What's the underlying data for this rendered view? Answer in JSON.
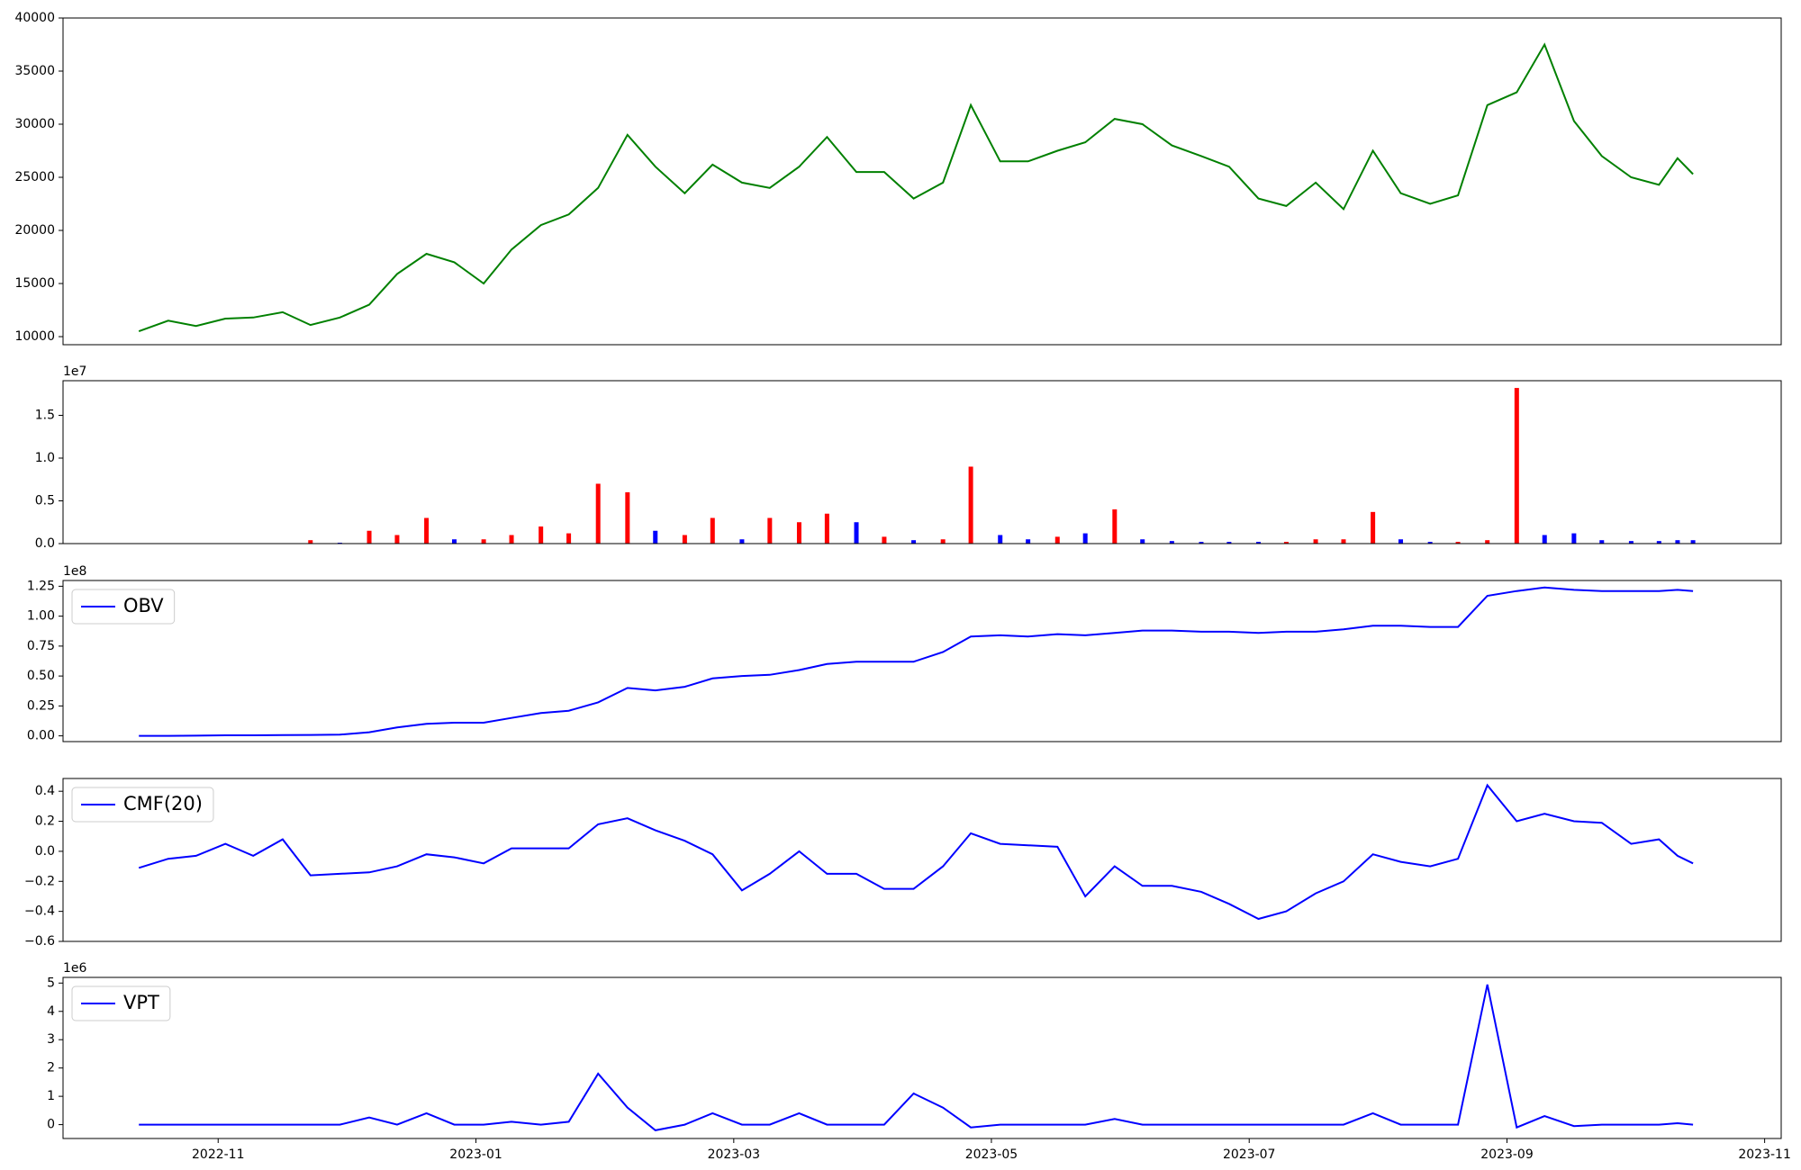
{
  "chart_data": [
    {
      "type": "line",
      "color": "green",
      "x": [
        2022.782,
        2022.801,
        2022.819,
        2022.838,
        2022.856,
        2022.875,
        2022.893,
        2022.912,
        2022.931,
        2022.949,
        2022.968,
        2022.986,
        2023.005,
        2023.023,
        2023.042,
        2023.06,
        2023.079,
        2023.098,
        2023.116,
        2023.135,
        2023.153,
        2023.172,
        2023.19,
        2023.209,
        2023.227,
        2023.246,
        2023.264,
        2023.283,
        2023.302,
        2023.32,
        2023.339,
        2023.357,
        2023.376,
        2023.394,
        2023.413,
        2023.431,
        2023.45,
        2023.469,
        2023.487,
        2023.506,
        2023.524,
        2023.543,
        2023.561,
        2023.58,
        2023.598,
        2023.617,
        2023.635,
        2023.654,
        2023.673,
        2023.691,
        2023.71,
        2023.728,
        2023.747,
        2023.765,
        2023.777,
        2023.787
      ],
      "values": [
        10500,
        11500,
        11000,
        11700,
        11800,
        12300,
        11100,
        11800,
        13000,
        15900,
        17800,
        17000,
        15000,
        18200,
        20500,
        21500,
        24000,
        29000,
        26000,
        23500,
        26200,
        24500,
        24000,
        26000,
        28800,
        25500,
        25500,
        23000,
        24500,
        31800,
        26500,
        26500,
        27500,
        28300,
        30500,
        30000,
        28000,
        27000,
        26000,
        23000,
        22300,
        24500,
        22000,
        27500,
        23500,
        22500,
        23300,
        31800,
        33000,
        37500,
        30300,
        27000,
        25000,
        24300,
        26800,
        25300
      ],
      "xlim": [
        2022.733,
        2023.844
      ],
      "ylim": [
        9240,
        40000
      ],
      "yticks": [
        10000,
        15000,
        20000,
        25000,
        30000,
        35000,
        40000
      ]
    },
    {
      "type": "bar",
      "offset_text": "1e7",
      "x": [
        2022.782,
        2022.801,
        2022.819,
        2022.838,
        2022.856,
        2022.875,
        2022.893,
        2022.912,
        2022.931,
        2022.949,
        2022.968,
        2022.986,
        2023.005,
        2023.023,
        2023.042,
        2023.06,
        2023.079,
        2023.098,
        2023.116,
        2023.135,
        2023.153,
        2023.172,
        2023.19,
        2023.209,
        2023.227,
        2023.246,
        2023.264,
        2023.283,
        2023.302,
        2023.32,
        2023.339,
        2023.357,
        2023.376,
        2023.394,
        2023.413,
        2023.431,
        2023.45,
        2023.469,
        2023.487,
        2023.506,
        2023.524,
        2023.543,
        2023.561,
        2023.58,
        2023.598,
        2023.617,
        2023.635,
        2023.654,
        2023.673,
        2023.691,
        2023.71,
        2023.728,
        2023.747,
        2023.765,
        2023.777,
        2023.787
      ],
      "values": [
        0,
        0,
        0,
        0,
        0,
        0,
        0.04,
        0.01,
        0.15,
        0.1,
        0.3,
        0.05,
        0.05,
        0.1,
        0.2,
        0.12,
        0.7,
        0.6,
        0.15,
        0.1,
        0.3,
        0.05,
        0.3,
        0.25,
        0.35,
        0.25,
        0.08,
        0.04,
        0.05,
        0.9,
        0.1,
        0.05,
        0.08,
        0.12,
        0.4,
        0.05,
        0.03,
        0.02,
        0.02,
        0.02,
        0.02,
        0.05,
        0.05,
        0.37,
        0.05,
        0.02,
        0.02,
        0.04,
        1.82,
        0.1,
        0.12,
        0.04,
        0.03,
        0.03,
        0.04,
        0.04
      ],
      "colors": [
        "blue",
        "blue",
        "blue",
        "blue",
        "blue",
        "blue",
        "red",
        "blue",
        "red",
        "red",
        "red",
        "blue",
        "red",
        "red",
        "red",
        "red",
        "red",
        "red",
        "blue",
        "red",
        "red",
        "blue",
        "red",
        "red",
        "red",
        "blue",
        "red",
        "blue",
        "red",
        "red",
        "blue",
        "blue",
        "red",
        "blue",
        "red",
        "blue",
        "blue",
        "blue",
        "blue",
        "blue",
        "red",
        "red",
        "red",
        "red",
        "blue",
        "blue",
        "red",
        "red",
        "red",
        "blue",
        "blue",
        "blue",
        "blue",
        "blue",
        "blue",
        "blue"
      ],
      "xlim": [
        2022.733,
        2023.844
      ],
      "ylim": [
        0,
        1.905
      ],
      "yticks": [
        {
          "value": 0,
          "label": "0.0"
        },
        0.5,
        {
          "value": 1,
          "label": "1.0"
        },
        1.5
      ]
    },
    {
      "type": "line",
      "offset_text": "1e8",
      "legend": "upper left",
      "x": [
        2022.782,
        2022.801,
        2022.819,
        2022.838,
        2022.856,
        2022.875,
        2022.893,
        2022.912,
        2022.931,
        2022.949,
        2022.968,
        2022.986,
        2023.005,
        2023.023,
        2023.042,
        2023.06,
        2023.079,
        2023.098,
        2023.116,
        2023.135,
        2023.153,
        2023.172,
        2023.19,
        2023.209,
        2023.227,
        2023.246,
        2023.264,
        2023.283,
        2023.302,
        2023.32,
        2023.339,
        2023.357,
        2023.376,
        2023.394,
        2023.413,
        2023.431,
        2023.45,
        2023.469,
        2023.487,
        2023.506,
        2023.524,
        2023.543,
        2023.561,
        2023.58,
        2023.598,
        2023.617,
        2023.635,
        2023.654,
        2023.673,
        2023.691,
        2023.71,
        2023.728,
        2023.747,
        2023.765,
        2023.777,
        2023.787
      ],
      "series": [
        {
          "name": "OBV",
          "color": "blue",
          "values": [
            0,
            0,
            0.002,
            0.005,
            0.005,
            0.006,
            0.008,
            0.01,
            0.03,
            0.07,
            0.1,
            0.11,
            0.11,
            0.15,
            0.19,
            0.21,
            0.28,
            0.4,
            0.38,
            0.41,
            0.48,
            0.5,
            0.51,
            0.55,
            0.6,
            0.62,
            0.62,
            0.62,
            0.7,
            0.83,
            0.84,
            0.83,
            0.85,
            0.84,
            0.86,
            0.88,
            0.88,
            0.87,
            0.87,
            0.86,
            0.87,
            0.87,
            0.89,
            0.92,
            0.92,
            0.91,
            0.91,
            1.17,
            1.21,
            1.24,
            1.22,
            1.21,
            1.21,
            1.21,
            1.22,
            1.21
          ]
        }
      ],
      "xlim": [
        2022.733,
        2023.844
      ],
      "ylim": [
        -0.048,
        1.298
      ],
      "yticks": [
        {
          "value": 0,
          "label": "0.00"
        },
        0.25,
        {
          "value": 0.5,
          "label": "0.50"
        },
        0.75,
        {
          "value": 1,
          "label": "1.00"
        },
        1.25
      ]
    },
    {
      "type": "line",
      "legend": "upper left",
      "x": [
        2022.782,
        2022.801,
        2022.819,
        2022.838,
        2022.856,
        2022.875,
        2022.893,
        2022.912,
        2022.931,
        2022.949,
        2022.968,
        2022.986,
        2023.005,
        2023.023,
        2023.042,
        2023.06,
        2023.079,
        2023.098,
        2023.116,
        2023.135,
        2023.153,
        2023.172,
        2023.19,
        2023.209,
        2023.227,
        2023.246,
        2023.264,
        2023.283,
        2023.302,
        2023.32,
        2023.339,
        2023.357,
        2023.376,
        2023.394,
        2023.413,
        2023.431,
        2023.45,
        2023.469,
        2023.487,
        2023.506,
        2023.524,
        2023.543,
        2023.561,
        2023.58,
        2023.598,
        2023.617,
        2023.635,
        2023.654,
        2023.673,
        2023.691,
        2023.71,
        2023.728,
        2023.747,
        2023.765,
        2023.777,
        2023.787
      ],
      "series": [
        {
          "name": "CMF(20)",
          "color": "blue",
          "values": [
            -0.11,
            -0.05,
            -0.03,
            0.05,
            -0.03,
            0.08,
            -0.16,
            -0.15,
            -0.14,
            -0.1,
            -0.02,
            -0.04,
            -0.08,
            0.02,
            0.02,
            0.02,
            0.18,
            0.22,
            0.14,
            0.07,
            -0.02,
            -0.26,
            -0.15,
            0.0,
            -0.15,
            -0.15,
            -0.25,
            -0.25,
            -0.1,
            0.12,
            0.05,
            0.04,
            0.03,
            -0.3,
            -0.1,
            -0.23,
            -0.23,
            -0.27,
            -0.35,
            -0.45,
            -0.4,
            -0.28,
            -0.2,
            -0.02,
            -0.07,
            -0.1,
            -0.05,
            0.44,
            0.2,
            0.25,
            0.2,
            0.19,
            0.05,
            0.08,
            -0.03,
            -0.08
          ]
        }
      ],
      "xlim": [
        2022.733,
        2023.844
      ],
      "ylim": [
        -0.6,
        0.485
      ],
      "yticks": [
        {
          "value": -0.6,
          "label": "−0.6"
        },
        {
          "value": -0.4,
          "label": "−0.4"
        },
        {
          "value": -0.2,
          "label": "−0.2"
        },
        {
          "value": 0,
          "label": "0.0"
        },
        0.2,
        0.4
      ]
    },
    {
      "type": "line",
      "offset_text": "1e6",
      "legend": "upper left",
      "x": [
        2022.782,
        2022.801,
        2022.819,
        2022.838,
        2022.856,
        2022.875,
        2022.893,
        2022.912,
        2022.931,
        2022.949,
        2022.968,
        2022.986,
        2023.005,
        2023.023,
        2023.042,
        2023.06,
        2023.079,
        2023.098,
        2023.116,
        2023.135,
        2023.153,
        2023.172,
        2023.19,
        2023.209,
        2023.227,
        2023.246,
        2023.264,
        2023.283,
        2023.302,
        2023.32,
        2023.339,
        2023.357,
        2023.376,
        2023.394,
        2023.413,
        2023.431,
        2023.45,
        2023.469,
        2023.487,
        2023.506,
        2023.524,
        2023.543,
        2023.561,
        2023.58,
        2023.598,
        2023.617,
        2023.635,
        2023.654,
        2023.673,
        2023.691,
        2023.71,
        2023.728,
        2023.747,
        2023.765,
        2023.777,
        2023.787
      ],
      "series": [
        {
          "name": "VPT",
          "color": "blue",
          "values": [
            0,
            0,
            0,
            0,
            0,
            0,
            0,
            0,
            0.25,
            0,
            0.4,
            0,
            0,
            0.1,
            0,
            0.1,
            1.8,
            0.6,
            -0.2,
            0,
            0.4,
            0,
            0,
            0.4,
            0,
            0,
            0,
            1.1,
            0.6,
            -0.1,
            0,
            0,
            0,
            0,
            0.2,
            0,
            0,
            0,
            0,
            0,
            0,
            0,
            0,
            0.4,
            0,
            0,
            0,
            4.95,
            -0.1,
            0.3,
            -0.05,
            0,
            0,
            0,
            0.05,
            0
          ]
        }
      ],
      "xlim": [
        2022.733,
        2023.844
      ],
      "ylim": [
        -0.49,
        5.2
      ],
      "yticks": [
        0,
        1,
        2,
        3,
        4,
        5
      ],
      "xticks": [
        {
          "value": 2022.8333,
          "label": "2022-11"
        },
        {
          "value": 2023.0,
          "label": "2023-01"
        },
        {
          "value": 2023.1667,
          "label": "2023-03"
        },
        {
          "value": 2023.3333,
          "label": "2023-05"
        },
        {
          "value": 2023.5,
          "label": "2023-07"
        },
        {
          "value": 2023.6667,
          "label": "2023-09"
        },
        {
          "value": 2023.8333,
          "label": "2023-11"
        }
      ]
    }
  ]
}
